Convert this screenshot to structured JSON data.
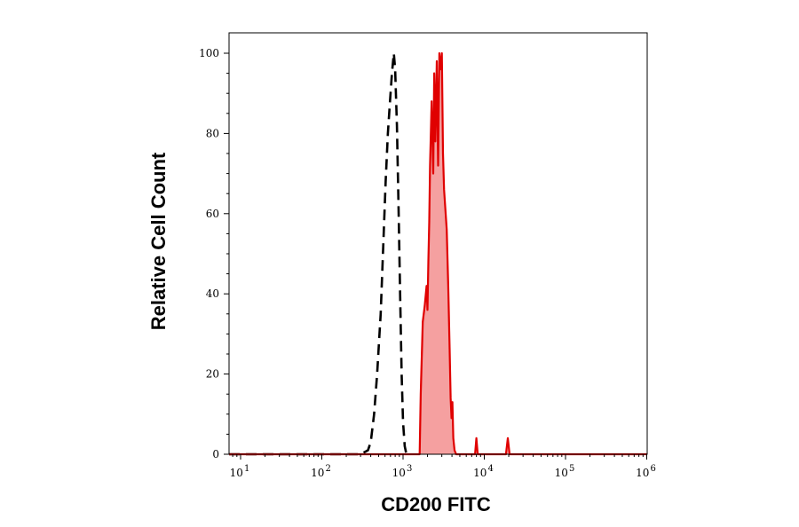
{
  "chart_data": {
    "type": "area",
    "xlabel": "CD200 FITC",
    "ylabel": "Relative Cell Count",
    "x_scale": "log",
    "xlim": [
      5,
      1000000
    ],
    "ylim": [
      0,
      100
    ],
    "grid": false,
    "legend": "none",
    "x_ticks": [
      {
        "value": 10,
        "base": "10",
        "exp": "1"
      },
      {
        "value": 100,
        "base": "10",
        "exp": "2"
      },
      {
        "value": 1000,
        "base": "10",
        "exp": "3"
      },
      {
        "value": 10000,
        "base": "10",
        "exp": "4"
      },
      {
        "value": 100000,
        "base": "10",
        "exp": "5"
      },
      {
        "value": 1000000,
        "base": "10",
        "exp": "6"
      }
    ],
    "y_ticks": [
      {
        "value": 0,
        "label": "0"
      },
      {
        "value": 20,
        "label": "20"
      },
      {
        "value": 40,
        "label": "40"
      },
      {
        "value": 60,
        "label": "60"
      },
      {
        "value": 80,
        "label": "80"
      },
      {
        "value": 100,
        "label": "100"
      }
    ],
    "series": [
      {
        "style": "dashed",
        "color": "#000000",
        "points": [
          [
            5,
            0
          ],
          [
            300,
            0
          ],
          [
            370,
            1
          ],
          [
            400,
            3
          ],
          [
            440,
            10
          ],
          [
            480,
            20
          ],
          [
            530,
            35
          ],
          [
            570,
            52
          ],
          [
            610,
            68
          ],
          [
            650,
            80
          ],
          [
            690,
            88
          ],
          [
            730,
            95
          ],
          [
            770,
            100
          ],
          [
            800,
            96
          ],
          [
            840,
            82
          ],
          [
            880,
            62
          ],
          [
            920,
            40
          ],
          [
            960,
            20
          ],
          [
            1000,
            8
          ],
          [
            1050,
            2
          ],
          [
            1100,
            0
          ]
        ]
      },
      {
        "style": "filled",
        "color": "#e00000",
        "fill": "#f5a0a0",
        "points": [
          [
            5,
            0
          ],
          [
            1500,
            0
          ],
          [
            1600,
            0
          ],
          [
            1650,
            15
          ],
          [
            1750,
            33
          ],
          [
            1850,
            37
          ],
          [
            1950,
            42
          ],
          [
            2000,
            36
          ],
          [
            2050,
            48
          ],
          [
            2100,
            58
          ],
          [
            2150,
            72
          ],
          [
            2250,
            88
          ],
          [
            2350,
            70
          ],
          [
            2420,
            95
          ],
          [
            2500,
            78
          ],
          [
            2600,
            98
          ],
          [
            2700,
            72
          ],
          [
            2800,
            100
          ],
          [
            2900,
            96
          ],
          [
            3000,
            100
          ],
          [
            3100,
            75
          ],
          [
            3200,
            66
          ],
          [
            3300,
            62
          ],
          [
            3450,
            56
          ],
          [
            3600,
            42
          ],
          [
            3750,
            26
          ],
          [
            3850,
            14
          ],
          [
            3950,
            9
          ],
          [
            4050,
            13
          ],
          [
            4150,
            4
          ],
          [
            4300,
            1
          ],
          [
            4500,
            0
          ],
          [
            7700,
            0
          ],
          [
            8000,
            4
          ],
          [
            8300,
            0
          ],
          [
            18500,
            0
          ],
          [
            19500,
            4
          ],
          [
            20500,
            0
          ],
          [
            1000000,
            0
          ]
        ]
      }
    ]
  }
}
